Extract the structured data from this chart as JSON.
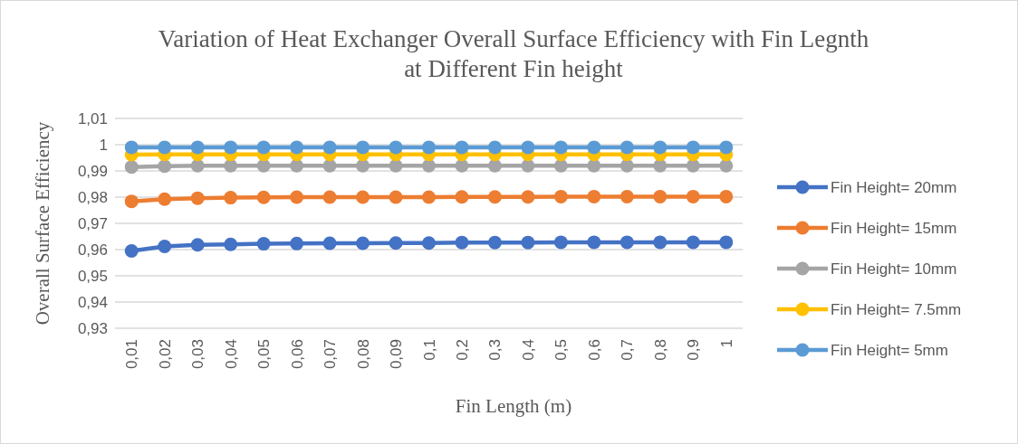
{
  "chart_data": {
    "type": "line",
    "title": "Variation of Heat Exchanger Overall Surface Efficiency with Fin Legnth at Different Fin height",
    "xlabel": "Fin Length (m)",
    "ylabel": "Overall Surface Efficiency",
    "categories": [
      "0,01",
      "0,02",
      "0,03",
      "0,04",
      "0,05",
      "0,06",
      "0,07",
      "0,08",
      "0,09",
      "0,1",
      "0,2",
      "0,3",
      "0,4",
      "0,5",
      "0,6",
      "0,7",
      "0,8",
      "0,9",
      "1"
    ],
    "ylim": [
      0.93,
      1.01
    ],
    "yticks": [
      {
        "value": 0.93,
        "label": "0,93"
      },
      {
        "value": 0.94,
        "label": "0,94"
      },
      {
        "value": 0.95,
        "label": "0,95"
      },
      {
        "value": 0.96,
        "label": "0,96"
      },
      {
        "value": 0.97,
        "label": "0,97"
      },
      {
        "value": 0.98,
        "label": "0,98"
      },
      {
        "value": 0.99,
        "label": "0,99"
      },
      {
        "value": 1,
        "label": "1"
      },
      {
        "value": 1.01,
        "label": "1,01"
      }
    ],
    "grid": "y",
    "legend": "right",
    "marker": "circle",
    "line_style": "solid",
    "series": [
      {
        "name": "Fin Height= 20mm",
        "color": "#4472c4",
        "values": [
          0.9595,
          0.9612,
          0.9618,
          0.962,
          0.9622,
          0.9623,
          0.9624,
          0.9624,
          0.9625,
          0.9625,
          0.9627,
          0.9627,
          0.9627,
          0.9628,
          0.9628,
          0.9628,
          0.9628,
          0.9628,
          0.9628
        ]
      },
      {
        "name": "Fin Height= 15mm",
        "color": "#ed7d31",
        "values": [
          0.9784,
          0.9792,
          0.9796,
          0.9798,
          0.9799,
          0.98,
          0.98,
          0.98,
          0.98,
          0.98,
          0.9801,
          0.9801,
          0.9801,
          0.9802,
          0.9802,
          0.9802,
          0.9802,
          0.9802,
          0.9802
        ]
      },
      {
        "name": "Fin Height= 10mm",
        "color": "#a5a5a5",
        "values": [
          0.9915,
          0.9918,
          0.992,
          0.992,
          0.992,
          0.992,
          0.992,
          0.992,
          0.992,
          0.992,
          0.992,
          0.992,
          0.992,
          0.992,
          0.992,
          0.992,
          0.992,
          0.992,
          0.992
        ]
      },
      {
        "name": "Fin Height= 7.5mm",
        "color": "#ffc000",
        "values": [
          0.9962,
          0.9963,
          0.9963,
          0.9963,
          0.9963,
          0.9963,
          0.9963,
          0.9963,
          0.9963,
          0.9963,
          0.9963,
          0.9963,
          0.9963,
          0.9963,
          0.9963,
          0.9963,
          0.9963,
          0.9963,
          0.9963
        ]
      },
      {
        "name": "Fin Height= 5mm",
        "color": "#5b9bd5",
        "values": [
          0.999,
          0.999,
          0.999,
          0.999,
          0.999,
          0.999,
          0.999,
          0.999,
          0.999,
          0.999,
          0.999,
          0.999,
          0.999,
          0.999,
          0.999,
          0.999,
          0.999,
          0.999,
          0.999
        ]
      }
    ]
  }
}
